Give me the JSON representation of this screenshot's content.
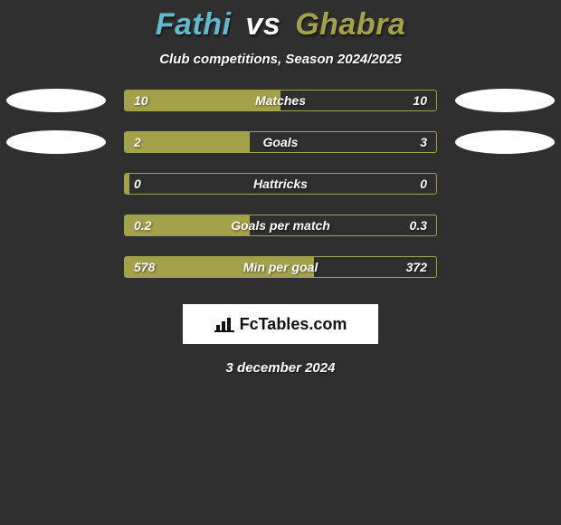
{
  "title": {
    "player1": "Fathi",
    "vs": "vs",
    "player2": "Ghabra",
    "player1_color": "#63bacf",
    "vs_color": "#ffffff",
    "player2_color": "#a3a14a"
  },
  "subtitle": "Club competitions, Season 2024/2025",
  "bar_fill_color": "#a3a14a",
  "bar_border_color": "#a3a14a",
  "background_color": "#2f2f2f",
  "text_color": "#ffffff",
  "rows": [
    {
      "label": "Matches",
      "left": "10",
      "right": "10",
      "left_width_pct": 50,
      "show_ovals": true
    },
    {
      "label": "Goals",
      "left": "2",
      "right": "3",
      "left_width_pct": 40,
      "show_ovals": true
    },
    {
      "label": "Hattricks",
      "left": "0",
      "right": "0",
      "left_width_pct": 1.5,
      "show_ovals": false
    },
    {
      "label": "Goals per match",
      "left": "0.2",
      "right": "0.3",
      "left_width_pct": 40,
      "show_ovals": false
    },
    {
      "label": "Min per goal",
      "left": "578",
      "right": "372",
      "left_width_pct": 60.8,
      "show_ovals": false
    }
  ],
  "footer_brand": "FcTables.com",
  "footer_date": "3 december 2024"
}
